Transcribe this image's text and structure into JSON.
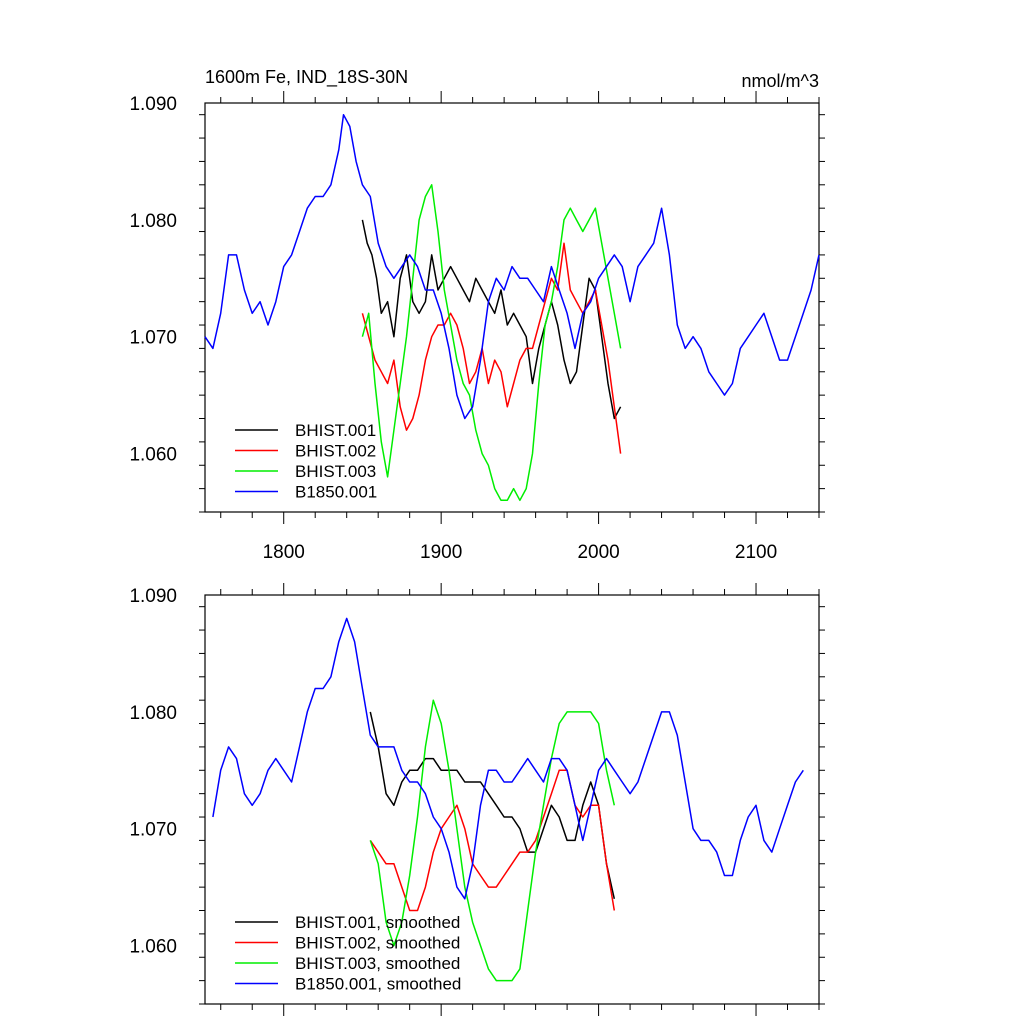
{
  "chart_data": [
    {
      "type": "line",
      "title": "1600m Fe, IND_18S-30N",
      "units": "nmol/m^3",
      "xlim": [
        1750,
        2140
      ],
      "ylim": [
        1.055,
        1.09
      ],
      "x_ticks": [
        1800,
        1900,
        2000,
        2100
      ],
      "x_tick_labels": [
        "1800",
        "1900",
        "2000",
        "2100"
      ],
      "y_ticks": [
        1.06,
        1.07,
        1.08,
        1.09
      ],
      "y_tick_labels": [
        "1.060",
        "1.070",
        "1.080",
        "1.090"
      ],
      "legend_position": "bottom-left",
      "grid": false,
      "series": [
        {
          "name": "BHIST.001",
          "color": "#000000",
          "x": [
            1850,
            1853,
            1856,
            1859,
            1862,
            1866,
            1870,
            1874,
            1878,
            1882,
            1886,
            1890,
            1894,
            1898,
            1902,
            1906,
            1910,
            1914,
            1918,
            1922,
            1926,
            1930,
            1934,
            1938,
            1942,
            1946,
            1950,
            1954,
            1958,
            1962,
            1966,
            1970,
            1974,
            1978,
            1982,
            1986,
            1990,
            1994,
            1998,
            2002,
            2006,
            2010,
            2014
          ],
          "y": [
            1.08,
            1.078,
            1.077,
            1.075,
            1.072,
            1.073,
            1.07,
            1.075,
            1.077,
            1.073,
            1.072,
            1.073,
            1.077,
            1.074,
            1.075,
            1.076,
            1.075,
            1.074,
            1.073,
            1.075,
            1.074,
            1.073,
            1.072,
            1.074,
            1.071,
            1.072,
            1.071,
            1.07,
            1.066,
            1.069,
            1.071,
            1.073,
            1.071,
            1.068,
            1.066,
            1.067,
            1.071,
            1.075,
            1.074,
            1.07,
            1.066,
            1.063,
            1.064
          ]
        },
        {
          "name": "BHIST.002",
          "color": "#ff0000",
          "x": [
            1850,
            1854,
            1858,
            1862,
            1866,
            1870,
            1874,
            1878,
            1882,
            1886,
            1890,
            1894,
            1898,
            1902,
            1906,
            1910,
            1914,
            1918,
            1922,
            1926,
            1930,
            1934,
            1938,
            1942,
            1946,
            1950,
            1954,
            1958,
            1962,
            1966,
            1970,
            1974,
            1978,
            1982,
            1986,
            1990,
            1994,
            1998,
            2002,
            2006,
            2010,
            2014
          ],
          "y": [
            1.072,
            1.07,
            1.068,
            1.067,
            1.066,
            1.068,
            1.064,
            1.062,
            1.063,
            1.065,
            1.068,
            1.07,
            1.071,
            1.071,
            1.072,
            1.071,
            1.069,
            1.066,
            1.067,
            1.069,
            1.066,
            1.068,
            1.067,
            1.064,
            1.066,
            1.068,
            1.069,
            1.069,
            1.071,
            1.073,
            1.075,
            1.074,
            1.078,
            1.074,
            1.073,
            1.072,
            1.073,
            1.074,
            1.071,
            1.068,
            1.064,
            1.06
          ]
        },
        {
          "name": "BHIST.003",
          "color": "#00ee00",
          "x": [
            1850,
            1854,
            1858,
            1862,
            1866,
            1870,
            1874,
            1878,
            1882,
            1886,
            1890,
            1894,
            1898,
            1902,
            1906,
            1910,
            1914,
            1918,
            1922,
            1926,
            1930,
            1934,
            1938,
            1942,
            1946,
            1950,
            1954,
            1958,
            1962,
            1966,
            1970,
            1974,
            1978,
            1982,
            1986,
            1990,
            1994,
            1998,
            2002,
            2006,
            2010,
            2014
          ],
          "y": [
            1.07,
            1.072,
            1.066,
            1.061,
            1.058,
            1.062,
            1.066,
            1.07,
            1.075,
            1.08,
            1.082,
            1.083,
            1.079,
            1.074,
            1.071,
            1.068,
            1.066,
            1.065,
            1.062,
            1.06,
            1.059,
            1.057,
            1.056,
            1.056,
            1.057,
            1.056,
            1.057,
            1.06,
            1.066,
            1.071,
            1.073,
            1.076,
            1.08,
            1.081,
            1.08,
            1.079,
            1.08,
            1.081,
            1.078,
            1.075,
            1.072,
            1.069
          ]
        },
        {
          "name": "B1850.001",
          "color": "#0000ff",
          "x": [
            1750,
            1755,
            1760,
            1765,
            1770,
            1775,
            1780,
            1785,
            1790,
            1795,
            1800,
            1805,
            1810,
            1815,
            1820,
            1825,
            1830,
            1835,
            1838,
            1842,
            1846,
            1850,
            1855,
            1860,
            1865,
            1870,
            1875,
            1880,
            1885,
            1890,
            1895,
            1900,
            1905,
            1910,
            1915,
            1920,
            1925,
            1930,
            1935,
            1940,
            1945,
            1950,
            1955,
            1960,
            1965,
            1970,
            1975,
            1980,
            1985,
            1990,
            1995,
            2000,
            2005,
            2010,
            2015,
            2020,
            2025,
            2030,
            2035,
            2040,
            2045,
            2050,
            2055,
            2060,
            2065,
            2070,
            2075,
            2080,
            2085,
            2090,
            2095,
            2100,
            2105,
            2110,
            2115,
            2120,
            2125,
            2130,
            2135,
            2140
          ],
          "y": [
            1.07,
            1.069,
            1.072,
            1.077,
            1.077,
            1.074,
            1.072,
            1.073,
            1.071,
            1.073,
            1.076,
            1.077,
            1.079,
            1.081,
            1.082,
            1.082,
            1.083,
            1.086,
            1.089,
            1.088,
            1.085,
            1.083,
            1.082,
            1.078,
            1.076,
            1.075,
            1.076,
            1.077,
            1.076,
            1.074,
            1.074,
            1.072,
            1.069,
            1.065,
            1.063,
            1.064,
            1.068,
            1.073,
            1.075,
            1.074,
            1.076,
            1.075,
            1.075,
            1.074,
            1.073,
            1.076,
            1.074,
            1.072,
            1.069,
            1.072,
            1.073,
            1.075,
            1.076,
            1.077,
            1.076,
            1.073,
            1.076,
            1.077,
            1.078,
            1.081,
            1.077,
            1.071,
            1.069,
            1.07,
            1.069,
            1.067,
            1.066,
            1.065,
            1.066,
            1.069,
            1.07,
            1.071,
            1.072,
            1.07,
            1.068,
            1.068,
            1.07,
            1.072,
            1.074,
            1.077
          ]
        }
      ]
    },
    {
      "type": "line",
      "xlim": [
        1750,
        2140
      ],
      "ylim": [
        1.055,
        1.09
      ],
      "x_ticks": [
        1800,
        1900,
        2000,
        2100
      ],
      "y_ticks": [
        1.06,
        1.07,
        1.08,
        1.09
      ],
      "y_tick_labels": [
        "1.060",
        "1.070",
        "1.080",
        "1.090"
      ],
      "legend_position": "bottom-left",
      "grid": false,
      "series": [
        {
          "name": "BHIST.001, smoothed",
          "color": "#000000",
          "x": [
            1855,
            1860,
            1865,
            1870,
            1875,
            1880,
            1885,
            1890,
            1895,
            1900,
            1905,
            1910,
            1915,
            1920,
            1925,
            1930,
            1935,
            1940,
            1945,
            1950,
            1955,
            1960,
            1965,
            1970,
            1975,
            1980,
            1985,
            1990,
            1995,
            2000,
            2005,
            2010
          ],
          "y": [
            1.08,
            1.077,
            1.073,
            1.072,
            1.074,
            1.075,
            1.075,
            1.076,
            1.076,
            1.075,
            1.075,
            1.075,
            1.074,
            1.074,
            1.074,
            1.073,
            1.072,
            1.071,
            1.071,
            1.07,
            1.068,
            1.068,
            1.07,
            1.072,
            1.071,
            1.069,
            1.069,
            1.072,
            1.074,
            1.072,
            1.067,
            1.064
          ]
        },
        {
          "name": "BHIST.002, smoothed",
          "color": "#ff0000",
          "x": [
            1855,
            1860,
            1865,
            1870,
            1875,
            1880,
            1885,
            1890,
            1895,
            1900,
            1905,
            1910,
            1915,
            1920,
            1925,
            1930,
            1935,
            1940,
            1945,
            1950,
            1955,
            1960,
            1965,
            1970,
            1975,
            1980,
            1985,
            1990,
            1995,
            2000,
            2005,
            2010
          ],
          "y": [
            1.069,
            1.068,
            1.067,
            1.067,
            1.065,
            1.063,
            1.063,
            1.065,
            1.068,
            1.07,
            1.071,
            1.072,
            1.07,
            1.067,
            1.066,
            1.065,
            1.065,
            1.066,
            1.067,
            1.068,
            1.068,
            1.069,
            1.071,
            1.073,
            1.075,
            1.075,
            1.072,
            1.071,
            1.072,
            1.072,
            1.067,
            1.063
          ]
        },
        {
          "name": "BHIST.003, smoothed",
          "color": "#00ee00",
          "x": [
            1855,
            1860,
            1865,
            1870,
            1875,
            1880,
            1885,
            1890,
            1895,
            1900,
            1905,
            1910,
            1915,
            1920,
            1925,
            1930,
            1935,
            1940,
            1945,
            1950,
            1955,
            1960,
            1965,
            1970,
            1975,
            1980,
            1985,
            1990,
            1995,
            2000,
            2005,
            2010
          ],
          "y": [
            1.069,
            1.067,
            1.062,
            1.06,
            1.062,
            1.066,
            1.071,
            1.077,
            1.081,
            1.079,
            1.075,
            1.07,
            1.065,
            1.062,
            1.06,
            1.058,
            1.057,
            1.057,
            1.057,
            1.058,
            1.063,
            1.068,
            1.072,
            1.076,
            1.079,
            1.08,
            1.08,
            1.08,
            1.08,
            1.079,
            1.075,
            1.072
          ]
        },
        {
          "name": "B1850.001, smoothed",
          "color": "#0000ff",
          "x": [
            1755,
            1760,
            1765,
            1770,
            1775,
            1780,
            1785,
            1790,
            1795,
            1800,
            1805,
            1810,
            1815,
            1820,
            1825,
            1830,
            1835,
            1840,
            1845,
            1850,
            1855,
            1860,
            1865,
            1870,
            1875,
            1880,
            1885,
            1890,
            1895,
            1900,
            1905,
            1910,
            1915,
            1920,
            1925,
            1930,
            1935,
            1940,
            1945,
            1950,
            1955,
            1960,
            1965,
            1970,
            1975,
            1980,
            1985,
            1990,
            1995,
            2000,
            2005,
            2010,
            2015,
            2020,
            2025,
            2030,
            2035,
            2040,
            2045,
            2050,
            2055,
            2060,
            2065,
            2070,
            2075,
            2080,
            2085,
            2090,
            2095,
            2100,
            2105,
            2110,
            2115,
            2120,
            2125,
            2130
          ],
          "y": [
            1.071,
            1.075,
            1.077,
            1.076,
            1.073,
            1.072,
            1.073,
            1.075,
            1.076,
            1.075,
            1.074,
            1.077,
            1.08,
            1.082,
            1.082,
            1.083,
            1.086,
            1.088,
            1.086,
            1.082,
            1.078,
            1.077,
            1.077,
            1.077,
            1.075,
            1.074,
            1.074,
            1.073,
            1.071,
            1.07,
            1.068,
            1.065,
            1.064,
            1.067,
            1.072,
            1.075,
            1.075,
            1.074,
            1.074,
            1.075,
            1.076,
            1.075,
            1.074,
            1.076,
            1.076,
            1.075,
            1.072,
            1.069,
            1.072,
            1.075,
            1.076,
            1.075,
            1.074,
            1.073,
            1.074,
            1.076,
            1.078,
            1.08,
            1.08,
            1.078,
            1.074,
            1.07,
            1.069,
            1.069,
            1.068,
            1.066,
            1.066,
            1.069,
            1.071,
            1.072,
            1.069,
            1.068,
            1.07,
            1.072,
            1.074,
            1.075
          ]
        }
      ]
    }
  ]
}
